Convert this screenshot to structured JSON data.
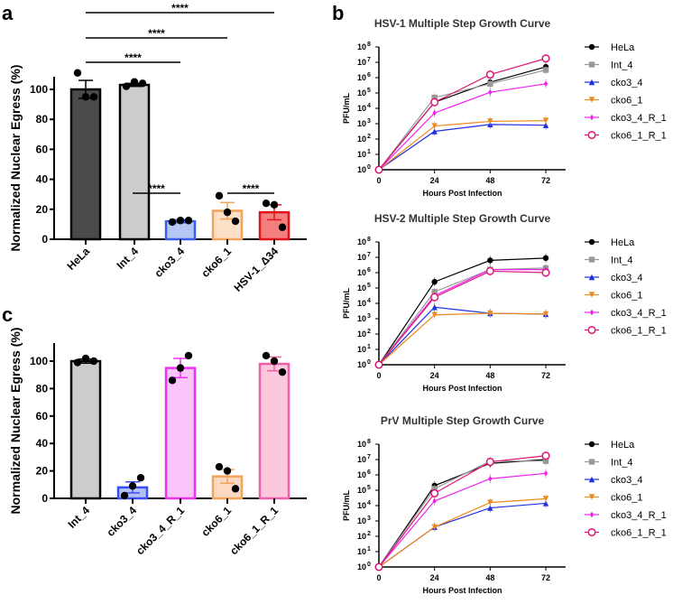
{
  "chart_data": [
    {
      "panel": "a",
      "type": "bar",
      "ylabel": "Normalized Nuclear Egress (%)",
      "ylim": [
        0,
        110
      ],
      "yticks": [
        0,
        20,
        40,
        60,
        80,
        100
      ],
      "categories": [
        "HeLa",
        "Int_4",
        "cko3_4",
        "cko6_1",
        "HSV-1_Δ34"
      ],
      "values": [
        100,
        103,
        12,
        19,
        18
      ],
      "errors": [
        6,
        1,
        1,
        5.5,
        5
      ],
      "points": [
        [
          111,
          95,
          95
        ],
        [
          102,
          105,
          104
        ],
        [
          11.5,
          12.5,
          12.5
        ],
        [
          29,
          18,
          12
        ],
        [
          24,
          23,
          8
        ]
      ],
      "fill_colors": [
        "#4a4a4a",
        "#cccccc",
        "#b5c6f5",
        "#fde0c8",
        "#f47f7f"
      ],
      "edge_colors": [
        "#000000",
        "#000000",
        "#3b5ef0",
        "#f4a35a",
        "#e3121b"
      ],
      "significance": [
        {
          "from": "HeLa",
          "to": "cko3_4",
          "label": "****"
        },
        {
          "from": "HeLa",
          "to": "cko6_1",
          "label": "****"
        },
        {
          "from": "HeLa",
          "to": "HSV-1_Δ34",
          "label": "****"
        }
      ]
    },
    {
      "panel": "b",
      "type": "line",
      "title": "HSV-1 Multiple Step Growth Curve",
      "xlabel": "Hours Post Infection",
      "ylabel": "PFU/mL",
      "yscale": "log",
      "x": [
        0,
        24,
        48,
        72
      ],
      "ylim_exp": [
        0,
        8
      ],
      "series": [
        {
          "name": "HeLa",
          "log10": [
            0,
            4.4,
            5.7,
            6.7
          ],
          "color": "#000000",
          "marker": "circle"
        },
        {
          "name": "Int_4",
          "log10": [
            0,
            4.7,
            5.6,
            6.5
          ],
          "color": "#999999",
          "marker": "square"
        },
        {
          "name": "cko3_4",
          "log10": [
            0,
            2.5,
            2.95,
            2.9
          ],
          "color": "#1f2fe0",
          "marker": "triangle"
        },
        {
          "name": "cko6_1",
          "log10": [
            0,
            2.85,
            3.15,
            3.2
          ],
          "color": "#f08a1c",
          "marker": "triangle-down"
        },
        {
          "name": "cko3_4_R_1",
          "log10": [
            0,
            3.7,
            5.05,
            5.6
          ],
          "color": "#ee22ee",
          "marker": "diamond"
        },
        {
          "name": "cko6_1_R_1",
          "log10": [
            0,
            4.4,
            6.2,
            7.25
          ],
          "color": "#e0157a",
          "marker": "open-circle"
        }
      ]
    },
    {
      "panel": "b",
      "type": "line",
      "title": "HSV-2 Multiple Step Growth Curve",
      "xlabel": "Hours Post Infection",
      "ylabel": "PFU/mL",
      "yscale": "log",
      "x": [
        0,
        24,
        48,
        72
      ],
      "ylim_exp": [
        0,
        8
      ],
      "series": [
        {
          "name": "HeLa",
          "log10": [
            0,
            5.4,
            6.8,
            6.95
          ],
          "color": "#000000",
          "marker": "circle"
        },
        {
          "name": "Int_4",
          "log10": [
            0,
            4.75,
            6.2,
            6.3
          ],
          "color": "#999999",
          "marker": "square"
        },
        {
          "name": "cko3_4",
          "log10": [
            0,
            3.75,
            3.35,
            3.3
          ],
          "color": "#1f2fe0",
          "marker": "triangle"
        },
        {
          "name": "cko6_1",
          "log10": [
            0,
            3.25,
            3.35,
            3.3
          ],
          "color": "#f08a1c",
          "marker": "triangle-down"
        },
        {
          "name": "cko3_4_R_1",
          "log10": [
            0,
            4.5,
            6.2,
            6.2
          ],
          "color": "#ee22ee",
          "marker": "diamond"
        },
        {
          "name": "cko6_1_R_1",
          "log10": [
            0,
            4.4,
            6.1,
            6.0
          ],
          "color": "#e0157a",
          "marker": "open-circle"
        }
      ]
    },
    {
      "panel": "b",
      "type": "line",
      "title": "PrV Multiple Step Growth Curve",
      "xlabel": "Hours Post Infection",
      "ylabel": "PFU/mL",
      "yscale": "log",
      "x": [
        0,
        24,
        48,
        72
      ],
      "ylim_exp": [
        0,
        8
      ],
      "series": [
        {
          "name": "HeLa",
          "log10": [
            0,
            5.3,
            6.75,
            7.0
          ],
          "color": "#000000",
          "marker": "circle"
        },
        {
          "name": "Int_4",
          "log10": [
            0,
            5.1,
            6.9,
            6.9
          ],
          "color": "#999999",
          "marker": "square"
        },
        {
          "name": "cko3_4",
          "log10": [
            0,
            2.6,
            3.85,
            4.15
          ],
          "color": "#1f2fe0",
          "marker": "triangle"
        },
        {
          "name": "cko6_1",
          "log10": [
            0,
            2.6,
            4.2,
            4.45
          ],
          "color": "#f08a1c",
          "marker": "triangle-down"
        },
        {
          "name": "cko3_4_R_1",
          "log10": [
            0,
            4.3,
            5.75,
            6.1
          ],
          "color": "#ee22ee",
          "marker": "diamond"
        },
        {
          "name": "cko6_1_R_1",
          "log10": [
            0,
            4.8,
            6.85,
            7.25
          ],
          "color": "#e0157a",
          "marker": "open-circle"
        }
      ]
    },
    {
      "panel": "c",
      "type": "bar",
      "ylabel": "Normalized Nuclear Egress (%)",
      "ylim": [
        0,
        110
      ],
      "yticks": [
        0,
        20,
        40,
        60,
        80,
        100
      ],
      "categories": [
        "Int_4",
        "cko3_4",
        "cko3_4_R_1",
        "cko6_1",
        "cko6_1_R_1"
      ],
      "values": [
        100,
        8,
        95,
        16,
        98
      ],
      "errors": [
        1.5,
        4,
        7,
        5,
        5
      ],
      "points": [
        [
          99,
          102,
          100
        ],
        [
          2,
          9,
          15
        ],
        [
          86,
          95,
          104
        ],
        [
          23,
          20,
          7
        ],
        [
          104,
          100,
          92
        ]
      ],
      "fill_colors": [
        "#cccccc",
        "#b5c0f5",
        "#fbc4fb",
        "#fcd9c2",
        "#fbc8de"
      ],
      "edge_colors": [
        "#000000",
        "#3b4ef0",
        "#ee33ee",
        "#f4a35a",
        "#f060a8"
      ],
      "significance": [
        {
          "from": "cko3_4",
          "to": "cko3_4_R_1",
          "label": "****"
        },
        {
          "from": "cko6_1",
          "to": "cko6_1_R_1",
          "label": "****"
        }
      ]
    }
  ],
  "panel_letters": [
    "a",
    "b",
    "c"
  ],
  "tick_base": "10"
}
